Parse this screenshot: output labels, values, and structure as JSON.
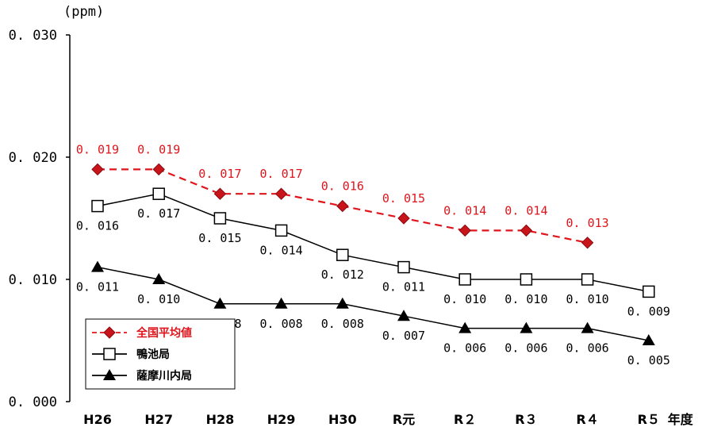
{
  "chart_data": {
    "type": "line",
    "unit_label": "(ppm)",
    "x_suffix": "年度",
    "categories": [
      "H26",
      "H27",
      "H28",
      "H29",
      "H30",
      "R元",
      "R２",
      "R３",
      "R４",
      "R５"
    ],
    "ylim": [
      0,
      0.03
    ],
    "yticks": [
      "0.000",
      "0.010",
      "0.020",
      "0.030"
    ],
    "grid": false,
    "legend_position": "bottom-left",
    "series": [
      {
        "name": "全国平均値",
        "color": "#e0141b",
        "line_style": "dashed",
        "marker": "diamond",
        "values": [
          0.019,
          0.019,
          0.017,
          0.017,
          0.016,
          0.015,
          0.014,
          0.014,
          0.013,
          null
        ],
        "labels": [
          "0.019",
          "0.019",
          "0.017",
          "0.017",
          "0.016",
          "0.015",
          "0.014",
          "0.014",
          "0.013",
          ""
        ]
      },
      {
        "name": "鴨池局",
        "color": "#000000",
        "line_style": "solid",
        "marker": "square",
        "values": [
          0.016,
          0.017,
          0.015,
          0.014,
          0.012,
          0.011,
          0.01,
          0.01,
          0.01,
          0.009
        ],
        "labels": [
          "0.016",
          "0.017",
          "0.015",
          "0.014",
          "0.012",
          "0.011",
          "0.010",
          "0.010",
          "0.010",
          "0.009"
        ]
      },
      {
        "name": "薩摩川内局",
        "color": "#000000",
        "line_style": "solid",
        "marker": "triangle",
        "values": [
          0.011,
          0.01,
          0.008,
          0.008,
          0.008,
          0.007,
          0.006,
          0.006,
          0.006,
          0.005
        ],
        "labels": [
          "0.011",
          "0.010",
          "0.008",
          "0.008",
          "0.008",
          "0.007",
          "0.006",
          "0.006",
          "0.006",
          "0.005"
        ]
      }
    ]
  }
}
